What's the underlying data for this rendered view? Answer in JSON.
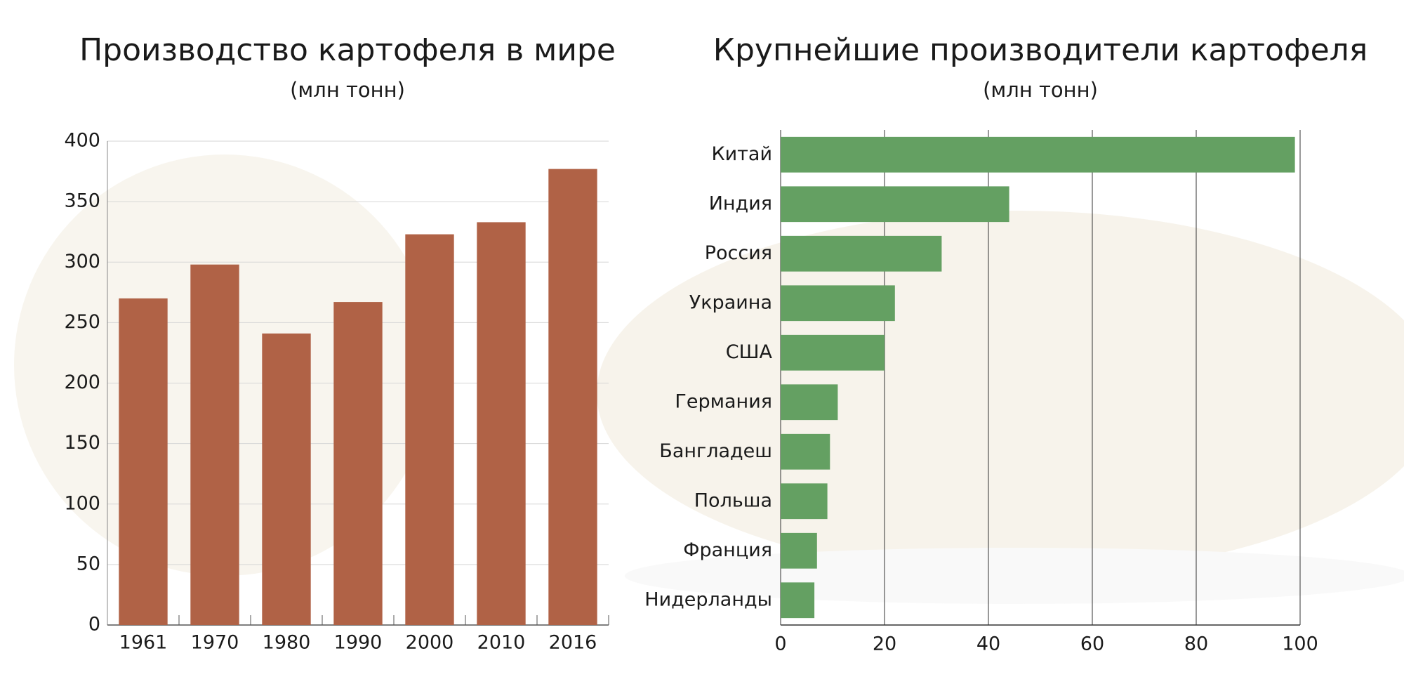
{
  "chart_data": [
    {
      "type": "bar",
      "title": "Производство картофеля в мире",
      "subtitle": "(млн тонн)",
      "categories": [
        "1961",
        "1970",
        "1980",
        "1990",
        "2000",
        "2010",
        "2016"
      ],
      "values": [
        270,
        298,
        241,
        267,
        323,
        333,
        377
      ],
      "color": "#b06246",
      "ylim": [
        0,
        400
      ],
      "yticks": [
        0,
        50,
        100,
        150,
        200,
        250,
        300,
        350,
        400
      ],
      "grid": true
    },
    {
      "type": "barh",
      "title": "Крупнейшие производители картофеля",
      "subtitle": "(млн тонн)",
      "categories": [
        "Китай",
        "Индия",
        "Россия",
        "Украина",
        "США",
        "Германия",
        "Бангладеш",
        "Польша",
        "Франция",
        "Нидерланды"
      ],
      "values": [
        99,
        44,
        31,
        22,
        20,
        11,
        9.5,
        9,
        7,
        6.5
      ],
      "color": "#64a062",
      "xlim": [
        0,
        100
      ],
      "xticks": [
        0,
        20,
        40,
        60,
        80,
        100
      ],
      "grid": true
    }
  ]
}
